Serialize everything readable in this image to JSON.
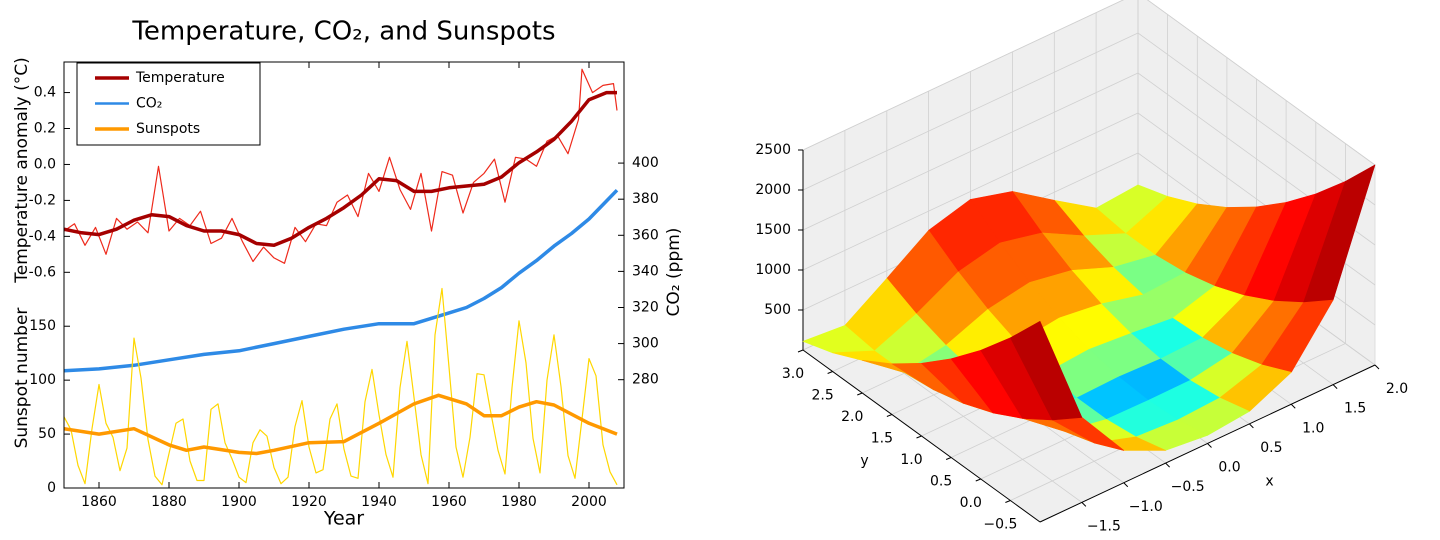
{
  "chart_data": [
    {
      "type": "line",
      "title": "Temperature, CO₂, and Sunspots",
      "xlabel": "Year",
      "ylabel": "Temperature anomaly (°C)",
      "y2label": "CO₂ (ppm)",
      "y3label": "Sunspot number",
      "xlim": [
        1850,
        2010
      ],
      "xticks": [
        1860,
        1880,
        1900,
        1920,
        1940,
        1960,
        1980,
        2000
      ],
      "ylim": [
        -1.8,
        0.57
      ],
      "yticks": [
        -0.6,
        -0.4,
        -0.2,
        {
          "value": 0,
          "label": "0.0"
        },
        0.2,
        0.4
      ],
      "y2lim": [
        220,
        456
      ],
      "y2ticks": [
        280,
        300,
        320,
        340,
        360,
        380,
        400
      ],
      "y3lim": [
        0,
        395
      ],
      "y3ticks": [
        0,
        50,
        100,
        150
      ],
      "legend": "upper left",
      "series": [
        {
          "color": "#ee2a1c",
          "axis": "y",
          "x": [
            1850,
            1853,
            1856,
            1859,
            1862,
            1865,
            1868,
            1871,
            1874,
            1877,
            1880,
            1883,
            1886,
            1889,
            1892,
            1895,
            1898,
            1901,
            1904,
            1907,
            1910,
            1913,
            1916,
            1919,
            1922,
            1925,
            1928,
            1931,
            1934,
            1937,
            1940,
            1943,
            1946,
            1949,
            1952,
            1955,
            1958,
            1961,
            1964,
            1967,
            1970,
            1973,
            1976,
            1979,
            1982,
            1985,
            1988,
            1991,
            1994,
            1997,
            1998,
            2001,
            2004,
            2007,
            2008
          ],
          "values": [
            -0.37,
            -0.33,
            -0.45,
            -0.35,
            -0.5,
            -0.3,
            -0.36,
            -0.32,
            -0.38,
            -0.01,
            -0.37,
            -0.3,
            -0.34,
            -0.26,
            -0.44,
            -0.41,
            -0.3,
            -0.43,
            -0.54,
            -0.46,
            -0.52,
            -0.55,
            -0.35,
            -0.43,
            -0.33,
            -0.34,
            -0.21,
            -0.17,
            -0.29,
            -0.05,
            -0.15,
            0.04,
            -0.14,
            -0.25,
            -0.05,
            -0.37,
            -0.04,
            -0.06,
            -0.27,
            -0.1,
            -0.05,
            0.03,
            -0.21,
            0.04,
            0.03,
            -0.01,
            0.13,
            0.16,
            0.06,
            0.25,
            0.53,
            0.4,
            0.44,
            0.45,
            0.3
          ]
        },
        {
          "name": "Temperature",
          "color": "#a50000",
          "axis": "y",
          "x": [
            1850,
            1855,
            1860,
            1865,
            1870,
            1875,
            1880,
            1885,
            1890,
            1895,
            1900,
            1905,
            1910,
            1915,
            1920,
            1925,
            1930,
            1935,
            1940,
            1945,
            1950,
            1955,
            1960,
            1965,
            1970,
            1975,
            1980,
            1985,
            1990,
            1995,
            2000,
            2005,
            2008
          ],
          "values": [
            -0.36,
            -0.38,
            -0.39,
            -0.36,
            -0.31,
            -0.28,
            -0.29,
            -0.34,
            -0.37,
            -0.37,
            -0.39,
            -0.44,
            -0.45,
            -0.41,
            -0.35,
            -0.3,
            -0.24,
            -0.17,
            -0.08,
            -0.09,
            -0.15,
            -0.15,
            -0.13,
            -0.12,
            -0.11,
            -0.07,
            0.01,
            0.07,
            0.14,
            0.24,
            0.36,
            0.4,
            0.4
          ]
        },
        {
          "name": "CO₂",
          "color": "#2e8ae6",
          "axis": "y2",
          "x": [
            1850,
            1860,
            1870,
            1880,
            1890,
            1900,
            1910,
            1920,
            1930,
            1940,
            1950,
            1955,
            1960,
            1965,
            1970,
            1975,
            1980,
            1985,
            1990,
            1995,
            2000,
            2005,
            2008
          ],
          "values": [
            285,
            286,
            288,
            291,
            294,
            296,
            300,
            304,
            308,
            311,
            311,
            314,
            317,
            320,
            325,
            331,
            339,
            346,
            354,
            361,
            369,
            379,
            385
          ]
        },
        {
          "color": "#ffd700",
          "axis": "y3",
          "x": [
            1850,
            1852,
            1854,
            1856,
            1858,
            1860,
            1862,
            1864,
            1866,
            1868,
            1870,
            1872,
            1874,
            1876,
            1878,
            1880,
            1882,
            1884,
            1886,
            1888,
            1890,
            1892,
            1894,
            1896,
            1898,
            1900,
            1902,
            1904,
            1906,
            1908,
            1910,
            1912,
            1914,
            1916,
            1918,
            1920,
            1922,
            1924,
            1926,
            1928,
            1930,
            1932,
            1934,
            1936,
            1938,
            1940,
            1942,
            1944,
            1946,
            1948,
            1950,
            1952,
            1954,
            1956,
            1958,
            1960,
            1962,
            1964,
            1966,
            1968,
            1970,
            1972,
            1974,
            1976,
            1978,
            1980,
            1982,
            1984,
            1986,
            1988,
            1990,
            1992,
            1994,
            1996,
            1998,
            2000,
            2002,
            2004,
            2006,
            2008
          ],
          "values": [
            66,
            54,
            21,
            4,
            55,
            96,
            60,
            47,
            16,
            37,
            139,
            102,
            45,
            11,
            3,
            32,
            60,
            64,
            25,
            7,
            7,
            73,
            78,
            42,
            27,
            10,
            5,
            42,
            54,
            48,
            19,
            4,
            10,
            57,
            81,
            38,
            14,
            17,
            64,
            78,
            36,
            11,
            9,
            80,
            110,
            68,
            31,
            10,
            93,
            136,
            84,
            31,
            4,
            142,
            185,
            112,
            38,
            10,
            47,
            106,
            105,
            69,
            35,
            13,
            93,
            155,
            116,
            46,
            14,
            100,
            142,
            94,
            30,
            9,
            64,
            120,
            104,
            40,
            15,
            3
          ]
        },
        {
          "name": "Sunspots",
          "color": "#ff9900",
          "axis": "y3",
          "x": [
            1850,
            1860,
            1870,
            1880,
            1885,
            1890,
            1900,
            1905,
            1910,
            1920,
            1930,
            1940,
            1950,
            1957,
            1965,
            1970,
            1975,
            1980,
            1985,
            1990,
            2000,
            2008
          ],
          "values": [
            55,
            50,
            55,
            40,
            35,
            38,
            33,
            32,
            35,
            42,
            43,
            60,
            78,
            86,
            78,
            67,
            67,
            75,
            80,
            77,
            60,
            50
          ]
        }
      ]
    },
    {
      "type": "surface",
      "xlabel": "x",
      "ylabel": "y",
      "colormap": "jet",
      "xlim": [
        -2,
        2
      ],
      "ylim": [
        -1,
        3
      ],
      "zlim": [
        0,
        2500
      ],
      "xticks": [
        {
          "value": -1.5,
          "label": "−1.5"
        },
        {
          "value": -1,
          "label": "−1.0"
        },
        {
          "value": -0.5,
          "label": "−0.5"
        },
        {
          "value": 0,
          "label": "0.0"
        },
        0.5,
        {
          "value": 1,
          "label": "1.0"
        },
        1.5,
        {
          "value": 2,
          "label": "2.0"
        }
      ],
      "yticks": [
        {
          "value": -0.5,
          "label": "−0.5"
        },
        {
          "value": 0,
          "label": "0.0"
        },
        0.5,
        {
          "value": 1,
          "label": "1.0"
        },
        1.5,
        {
          "value": 2,
          "label": "2.0"
        },
        2.5,
        {
          "value": 3,
          "label": "3.0"
        }
      ],
      "zticks": [
        500,
        1000,
        1500,
        2000,
        2500
      ],
      "x": [
        -2,
        -1.5,
        -1,
        -0.5,
        0,
        0.5,
        1,
        1.5,
        2
      ],
      "y": [
        -1,
        -0.5,
        0,
        0.5,
        1,
        1.5,
        2,
        2.5,
        3
      ],
      "z": [
        [
          2509,
          1062.5,
          404,
          158.5,
          101,
          156.5,
          400,
          1056.5,
          2501
        ],
        [
          2034,
          762.5,
          229,
          58.5,
          26,
          56.5,
          225,
          756.5,
          2026
        ],
        [
          1609,
          512.5,
          104,
          8.5,
          1,
          6.5,
          100,
          506.5,
          1601
        ],
        [
          1234,
          312.5,
          29,
          8.5,
          26,
          6.5,
          25,
          306.5,
          1226
        ],
        [
          909,
          162.5,
          4,
          58.5,
          101,
          56.5,
          0,
          156.5,
          901
        ],
        [
          634,
          62.5,
          29,
          158.5,
          226,
          156.5,
          25,
          56.5,
          626
        ],
        [
          409,
          12.5,
          104,
          308.5,
          401,
          306.5,
          100,
          6.5,
          401
        ],
        [
          234,
          12.5,
          229,
          508.5,
          626,
          506.5,
          225,
          6.5,
          226
        ],
        [
          109,
          62.5,
          404,
          758.5,
          901,
          756.5,
          400,
          56.5,
          101
        ]
      ]
    }
  ]
}
